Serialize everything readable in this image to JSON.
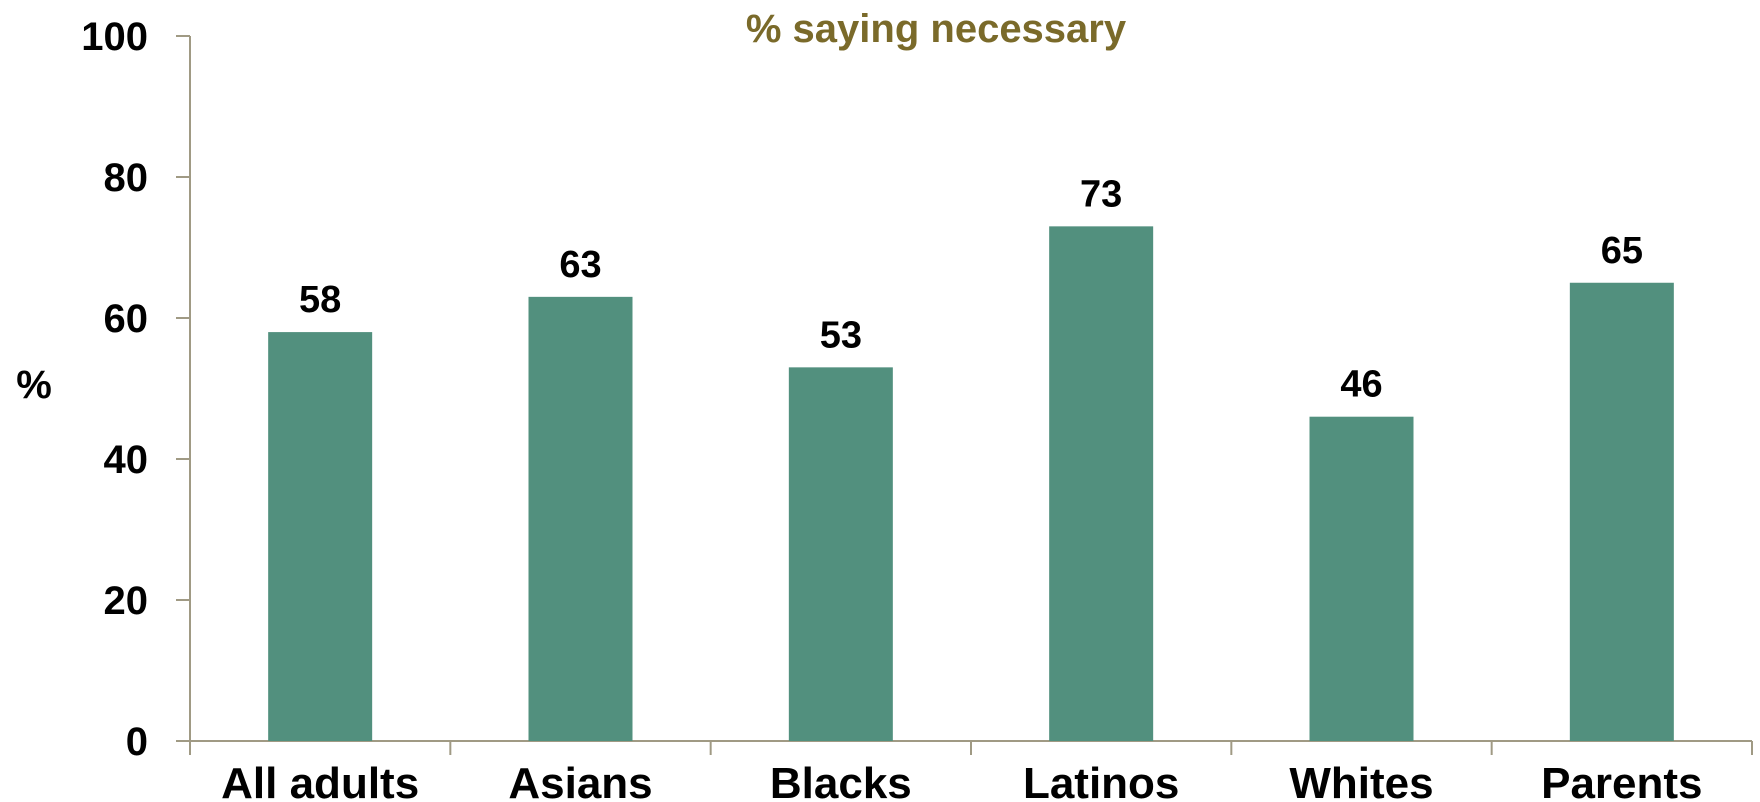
{
  "chart_data": {
    "type": "bar",
    "title": "% saying necessary",
    "ylabel": "%",
    "xlabel": "",
    "categories": [
      "All adults",
      "Asians",
      "Blacks",
      "Latinos",
      "Whites",
      "Parents"
    ],
    "values": [
      58,
      63,
      53,
      73,
      46,
      65
    ],
    "value_labels": [
      "58",
      "63",
      "53",
      "73",
      "46",
      "65"
    ],
    "ylim": [
      0,
      100
    ],
    "yticks": [
      0,
      20,
      40,
      60,
      80,
      100
    ],
    "ytick_labels": [
      "0",
      "20",
      "40",
      "60",
      "80",
      "100"
    ],
    "grid": false,
    "legend": "none",
    "colors": {
      "bar": "#52907e",
      "title": "#7a6a2a",
      "axis": "#a09a84",
      "text": "#000000"
    }
  }
}
